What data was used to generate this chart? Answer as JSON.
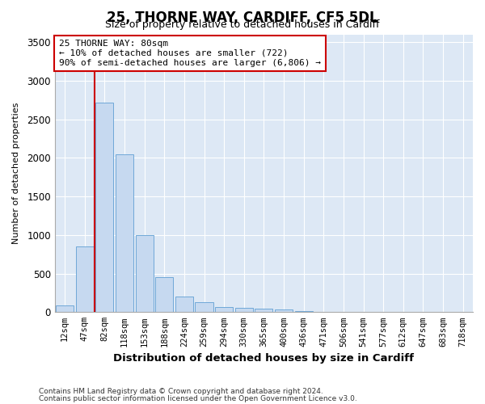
{
  "title1": "25, THORNE WAY, CARDIFF, CF5 5DL",
  "title2": "Size of property relative to detached houses in Cardiff",
  "xlabel": "Distribution of detached houses by size in Cardiff",
  "ylabel": "Number of detached properties",
  "categories": [
    "12sqm",
    "47sqm",
    "82sqm",
    "118sqm",
    "153sqm",
    "188sqm",
    "224sqm",
    "259sqm",
    "294sqm",
    "330sqm",
    "365sqm",
    "400sqm",
    "436sqm",
    "471sqm",
    "506sqm",
    "541sqm",
    "577sqm",
    "612sqm",
    "647sqm",
    "683sqm",
    "718sqm"
  ],
  "values": [
    82,
    850,
    2720,
    2050,
    1000,
    450,
    200,
    130,
    70,
    55,
    50,
    35,
    10,
    5,
    3,
    2,
    1,
    1,
    0,
    0,
    0
  ],
  "bar_color": "#c6d9f0",
  "bar_edge_color": "#6fa8d8",
  "vline_color": "#cc0000",
  "annotation_text": "25 THORNE WAY: 80sqm\n← 10% of detached houses are smaller (722)\n90% of semi-detached houses are larger (6,806) →",
  "annotation_box_color": "#ffffff",
  "annotation_box_edge": "#cc0000",
  "ylim": [
    0,
    3600
  ],
  "yticks": [
    0,
    500,
    1000,
    1500,
    2000,
    2500,
    3000,
    3500
  ],
  "background_color": "#dde8f5",
  "grid_color": "#ffffff",
  "fig_background": "#ffffff",
  "footer1": "Contains HM Land Registry data © Crown copyright and database right 2024.",
  "footer2": "Contains public sector information licensed under the Open Government Licence v3.0.",
  "title1_fontsize": 12,
  "title2_fontsize": 9
}
